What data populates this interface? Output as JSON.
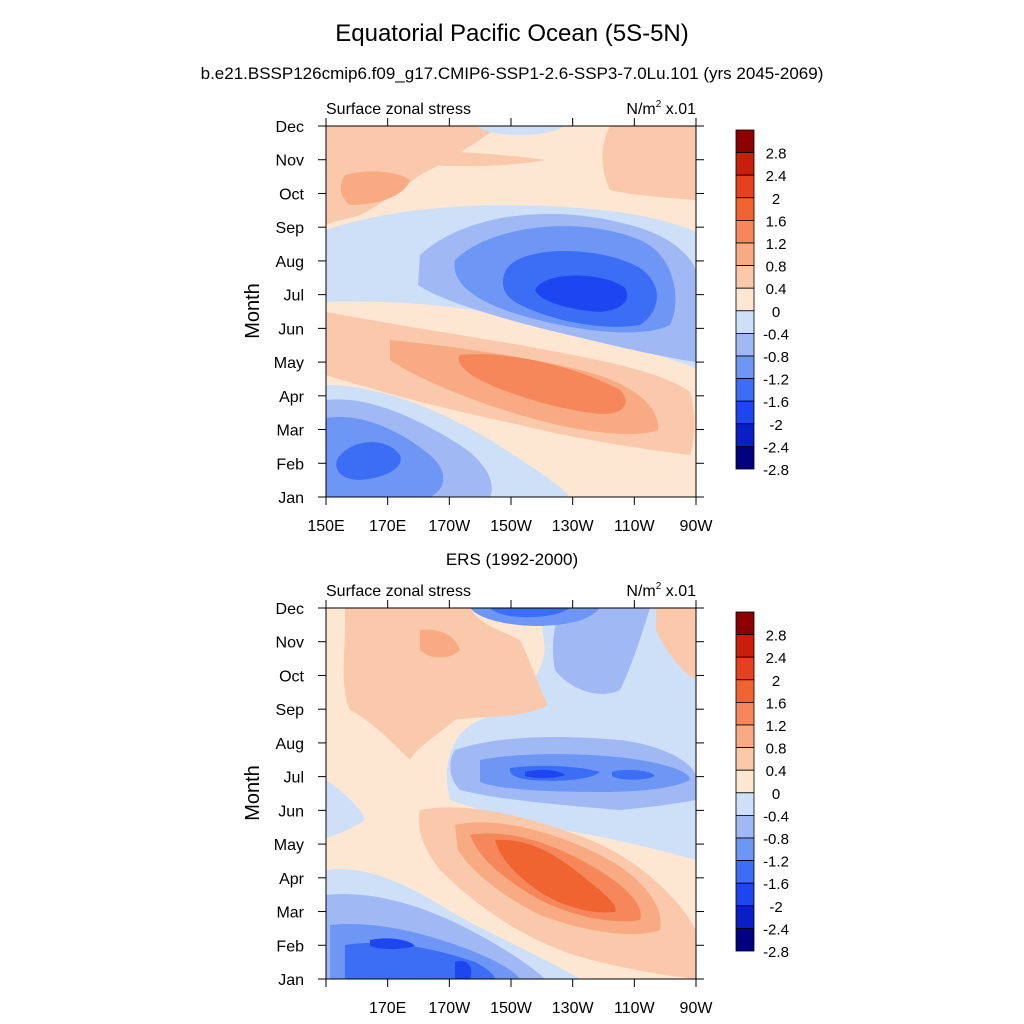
{
  "figure": {
    "title": "Equatorial Pacific Ocean (5S-5N)",
    "subtitle": "b.e21.BSSP126cmip6.f09_g17.CMIP6-SSP1-2.6-SSP3-7.0Lu.101 (yrs 2045-2069)"
  },
  "chart_data": [
    {
      "type": "heatmap",
      "panel": "model",
      "title": "",
      "left_label": "Surface zonal stress",
      "right_label": "N/m",
      "right_label_sup": "2",
      "right_label_suffix": " x.01",
      "xlabel": "",
      "ylabel": "Month",
      "x_ticks": [
        "150E",
        "170E",
        "170W",
        "150W",
        "130W",
        "110W",
        "90W"
      ],
      "y_ticks": [
        "Jan",
        "Feb",
        "Mar",
        "Apr",
        "May",
        "Jun",
        "Jul",
        "Aug",
        "Sep",
        "Oct",
        "Nov",
        "Dec"
      ],
      "x_range": [
        "150E",
        "90W"
      ],
      "y_range": [
        "Jan",
        "Dec"
      ],
      "colorbar_levels": [
        "2.8",
        "2.4",
        "2",
        "1.6",
        "1.2",
        "0.8",
        "0.4",
        "0",
        "-0.4",
        "-0.8",
        "-1.2",
        "-1.6",
        "-2",
        "-2.4",
        "-2.8"
      ],
      "features": [
        {
          "kind": "negative_minimum",
          "lon": "140W",
          "month": "Jul",
          "value": -1.8
        },
        {
          "kind": "positive_maximum",
          "lon": "140W",
          "month": "Apr",
          "value": 1.4
        },
        {
          "kind": "negative_minimum",
          "lon": "165E",
          "month": "Feb",
          "value": -1.4
        },
        {
          "kind": "positive_maximum",
          "lon": "165E",
          "month": "Oct",
          "value": 0.9
        }
      ]
    },
    {
      "type": "heatmap",
      "panel": "observations",
      "title": "ERS (1992-2000)",
      "left_label": "Surface zonal stress",
      "right_label": "N/m",
      "right_label_sup": "2",
      "right_label_suffix": " x.01",
      "xlabel": "",
      "ylabel": "Month",
      "x_ticks": [
        "170E",
        "170W",
        "150W",
        "130W",
        "110W",
        "90W"
      ],
      "y_ticks": [
        "Jan",
        "Feb",
        "Mar",
        "Apr",
        "May",
        "Jun",
        "Jul",
        "Aug",
        "Sep",
        "Oct",
        "Nov",
        "Dec"
      ],
      "x_range": [
        "150E",
        "90W"
      ],
      "y_range": [
        "Jan",
        "Dec"
      ],
      "colorbar_levels": [
        "2.8",
        "2.4",
        "2",
        "1.6",
        "1.2",
        "0.8",
        "0.4",
        "0",
        "-0.4",
        "-0.8",
        "-1.2",
        "-1.6",
        "-2",
        "-2.4",
        "-2.8"
      ],
      "features": [
        {
          "kind": "positive_maximum",
          "lon": "140W",
          "month": "Apr",
          "value": 1.8
        },
        {
          "kind": "negative_minimum",
          "lon": "140W",
          "month": "Jul",
          "value": -1.6
        },
        {
          "kind": "negative_minimum",
          "lon": "150W",
          "month": "Dec",
          "value": -1.6
        },
        {
          "kind": "negative_minimum",
          "lon": "170E",
          "month": "Feb",
          "value": -1.6
        }
      ]
    }
  ],
  "colors": {
    "scale": [
      "#000080",
      "#0a1ec8",
      "#1e46f0",
      "#3c6ef5",
      "#6e96f5",
      "#a0b9f5",
      "#cde0f8",
      "#fde6d2",
      "#fac8aa",
      "#f8aa82",
      "#f5875a",
      "#f06432",
      "#e6401e",
      "#c81e0a",
      "#8c0000"
    ]
  }
}
